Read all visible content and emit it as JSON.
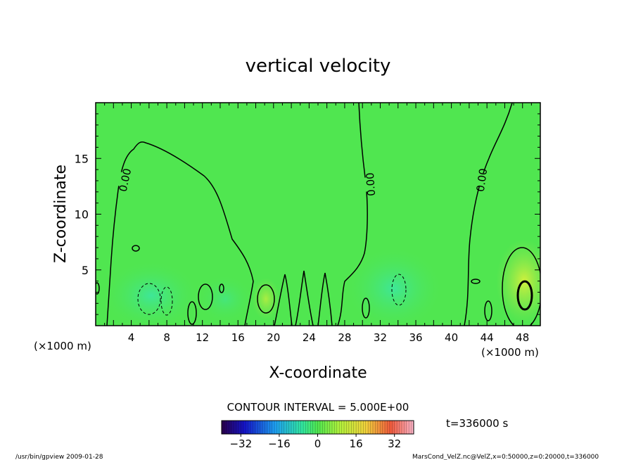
{
  "chart_data": {
    "type": "heatmap",
    "title": "vertical velocity",
    "xlabel": "X-coordinate",
    "ylabel": "Z-coordinate",
    "x_unit_left": "(×1000 m)",
    "x_unit_right": "(×1000 m)",
    "xlim": [
      0,
      50
    ],
    "ylim": [
      0,
      20
    ],
    "x_ticks": [
      4,
      8,
      12,
      16,
      20,
      24,
      28,
      32,
      36,
      40,
      44,
      48
    ],
    "y_ticks": [
      5,
      10,
      15
    ],
    "contour_interval_text": "CONTOUR INTERVAL = 5.000E+00",
    "contour_label": "0.00",
    "time_label": "t=336000 s",
    "colorbar": {
      "min": -40,
      "max": 40,
      "ticks": [
        -32,
        -16,
        0,
        16,
        32
      ]
    },
    "footer_left": "/usr/bin/gpview   2009-01-28",
    "footer_right": "MarsCond_VelZ.nc@VelZ,x=0:50000,z=0:20000,t=336000"
  }
}
